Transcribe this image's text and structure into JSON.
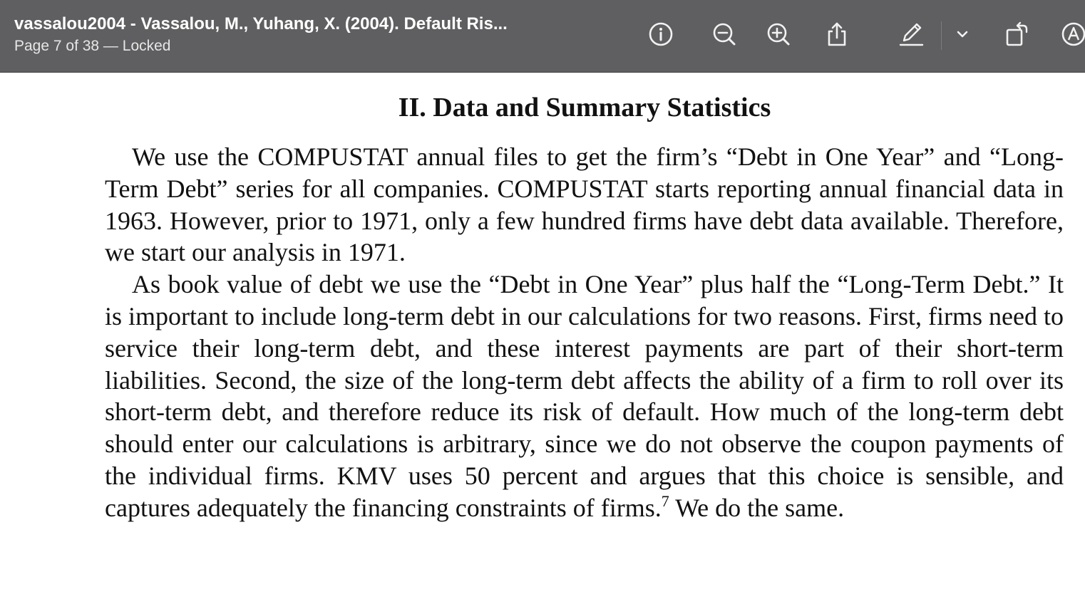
{
  "window": {
    "title": "vassalou2004 - Vassalou, M., Yuhang, X. (2004). Default Ris...",
    "subtitle": "Page 7 of 38 — Locked"
  },
  "toolbar": {
    "buttons": [
      {
        "name": "info-icon"
      },
      {
        "name": "zoom-out-icon"
      },
      {
        "name": "zoom-in-icon"
      },
      {
        "name": "share-icon"
      },
      {
        "name": "markup-pen-icon"
      },
      {
        "name": "chevron-down-icon"
      },
      {
        "name": "rotate-icon"
      },
      {
        "name": "annotate-icon"
      }
    ]
  },
  "document": {
    "heading": "II.  Data and Summary Statistics",
    "paragraphs": [
      "We use the COMPUSTAT annual files to get the firm’s “Debt in One Year” and “Long-Term Debt” series for all companies. COMPUSTAT starts reporting annual financial data in 1963. However, prior to 1971, only a few hundred firms have debt data available. Therefore, we start our analysis in 1971.",
      "As book value of debt we use the “Debt in One Year” plus half the “Long-Term Debt.” It is important to include long-term debt in our calculations for two reasons. First, firms need to service their long-term debt, and these in­terest payments are part of their short-term liabilities. Second, the size of the long-term debt affects the ability of a firm to roll over its short-term debt, and therefore reduce its risk of default. How much of the long-term debt should en­ter our calculations is arbitrary, since we do not observe the coupon payments of the individual firms. KMV uses 50 percent and argues that this choice is sensible, and captures adequately the financing constraints of firms."
    ],
    "footnote_marker": "7",
    "paragraph_tail": " We do the same."
  }
}
